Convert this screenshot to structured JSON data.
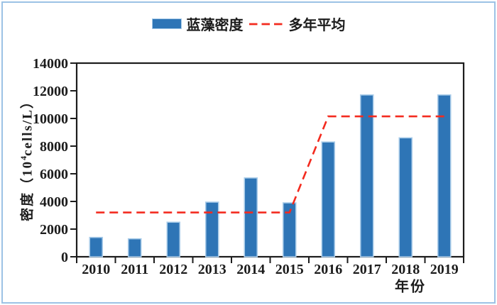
{
  "chart_data": {
    "type": "bar",
    "title": "",
    "categories": [
      "2010",
      "2011",
      "2012",
      "2013",
      "2014",
      "2015",
      "2016",
      "2017",
      "2018",
      "2019"
    ],
    "series": [
      {
        "name": "蓝藻密度",
        "type": "bar",
        "values": [
          1400,
          1300,
          2500,
          3950,
          5700,
          3900,
          8300,
          11700,
          8600,
          11700
        ]
      },
      {
        "name": "多年平均",
        "type": "dashed-line",
        "values": [
          3200,
          3200,
          3200,
          3200,
          3200,
          3200,
          10150,
          10150,
          10150,
          10150
        ]
      }
    ],
    "xlabel": "年份",
    "ylabel": "密度（10⁴cells/L）",
    "ylabel_parts": {
      "prefix": "密度（10",
      "sup": "4",
      "suffix": "cells/L）"
    },
    "ylim": [
      0,
      14000
    ],
    "yticks": [
      0,
      2000,
      4000,
      6000,
      8000,
      10000,
      12000,
      14000
    ],
    "grid": false,
    "legend_position": "top-center"
  },
  "colors": {
    "bar_fill": "#2E75B6",
    "bar_border": "#A9CCE9",
    "avg_line": "#F32B1F",
    "frame_border": "#9CC2E5",
    "axis": "#1c1c1c",
    "text": "#1c1c1c"
  }
}
